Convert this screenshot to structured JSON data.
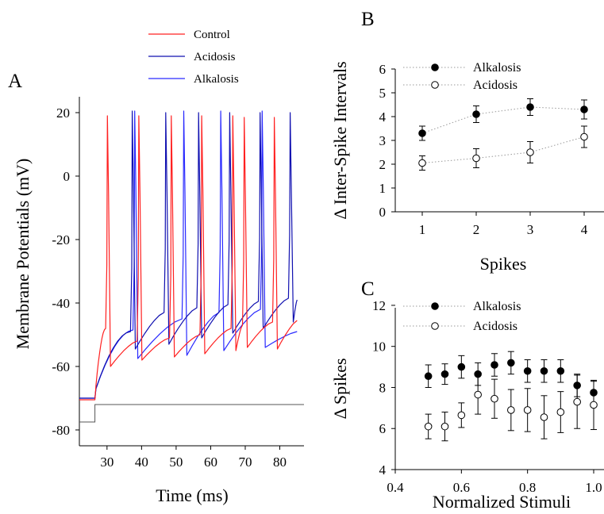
{
  "chart_data": [
    {
      "panel": "A",
      "type": "line",
      "xlabel": "Time (ms)",
      "ylabel": "Membrane Potentials (mV)",
      "xlim": [
        22,
        87
      ],
      "ylim": [
        -85,
        25
      ],
      "xticks": [
        30,
        40,
        50,
        60,
        70,
        80
      ],
      "yticks": [
        20,
        0,
        -20,
        -40,
        -60,
        -80
      ],
      "legend": {
        "placement": "top",
        "entries": [
          "Control",
          "Acidosis",
          "Alkalosis"
        ]
      },
      "stimulus": {
        "step_time": 26.5,
        "baseline": -77.5,
        "level": -72
      },
      "series": [
        {
          "name": "Control",
          "color": "#ff2020",
          "rest": -70.5,
          "start_time": 26.5,
          "first_rise_start": -66,
          "first_threshold": -48,
          "spike_times": [
            30.1,
            39.2,
            48.6,
            57.4,
            66.4,
            69.7,
            78.4
          ],
          "peaks": [
            19,
            19,
            19,
            19,
            19,
            18.5,
            18.5
          ],
          "troughs": [
            -60,
            -58,
            -57,
            -56,
            -55,
            -54,
            -54.5
          ],
          "thresholds": [
            -52,
            -51,
            -50,
            -48,
            -47,
            -46
          ],
          "end_value": -45.5
        },
        {
          "name": "Acidosis",
          "color": "#1010b0",
          "rest": -70,
          "start_time": 26.5,
          "first_rise_start": -67,
          "first_threshold": -49,
          "spike_times": [
            37.3,
            47.0,
            56.5,
            65.5,
            74.3,
            83.0
          ],
          "peaks": [
            20.5,
            20,
            20,
            20,
            20,
            20
          ],
          "troughs": [
            -54.5,
            -53,
            -51,
            -49.5,
            -48,
            -46
          ],
          "thresholds": [
            -43,
            -41.5,
            -40.5,
            -39.5,
            -38.5
          ],
          "end_value": -39
        },
        {
          "name": "Alkalosis",
          "color": "#2a2aff",
          "rest": -70,
          "start_time": 26.5,
          "first_rise_start": -67,
          "first_threshold": -48.5,
          "spike_times": [
            38.0,
            52.2,
            62.9,
            74.9
          ],
          "peaks": [
            20.5,
            20.5,
            20.5,
            20.5
          ],
          "troughs": [
            -57.5,
            -56.5,
            -55,
            -54
          ],
          "thresholds": [
            -45,
            -43,
            -42
          ],
          "end_value": -49
        }
      ]
    },
    {
      "panel": "B",
      "type": "scatter",
      "xlabel": "Spikes",
      "ylabel": "Δ Inter-Spike Intervals",
      "xlim": [
        0.5,
        4.5
      ],
      "ylim": [
        0,
        6
      ],
      "xticks": [
        1,
        2,
        3,
        4
      ],
      "yticks": [
        0,
        1,
        2,
        3,
        4,
        5,
        6
      ],
      "legend": {
        "placement": "top-left"
      },
      "series": [
        {
          "name": "Alkalosis",
          "marker": "filled",
          "x": [
            1,
            2,
            3,
            4
          ],
          "y": [
            3.3,
            4.1,
            4.4,
            4.3
          ],
          "err": [
            0.3,
            0.35,
            0.35,
            0.4
          ]
        },
        {
          "name": "Acidosis",
          "marker": "open",
          "x": [
            1,
            2,
            3,
            4
          ],
          "y": [
            2.05,
            2.25,
            2.5,
            3.15
          ],
          "err": [
            0.3,
            0.4,
            0.45,
            0.45
          ]
        }
      ]
    },
    {
      "panel": "C",
      "type": "scatter",
      "xlabel": "Normalized Stimuli",
      "ylabel": "Δ Spikes",
      "xlim": [
        0.4,
        1.0
      ],
      "ylim": [
        4,
        12.5
      ],
      "xticks": [
        0.4,
        0.6,
        0.8,
        1.0
      ],
      "xticklabels": [
        "0.4",
        "0.6",
        "0.8",
        "1.0"
      ],
      "yticks": [
        4,
        6,
        8,
        10,
        12
      ],
      "legend": {
        "placement": "top-left"
      },
      "series": [
        {
          "name": "Alkalosis",
          "marker": "filled",
          "x": [
            0.5,
            0.55,
            0.6,
            0.65,
            0.7,
            0.75,
            0.8,
            0.85,
            0.9,
            0.95,
            1.0
          ],
          "y": [
            8.55,
            8.65,
            9.0,
            8.65,
            9.1,
            9.2,
            8.8,
            8.8,
            8.8,
            8.1,
            7.75
          ],
          "err": [
            0.55,
            0.5,
            0.55,
            0.55,
            0.55,
            0.55,
            0.55,
            0.55,
            0.55,
            0.55,
            0.55
          ]
        },
        {
          "name": "Acidosis",
          "marker": "open",
          "x": [
            0.5,
            0.55,
            0.6,
            0.65,
            0.7,
            0.75,
            0.8,
            0.85,
            0.9,
            0.95,
            1.0
          ],
          "y": [
            6.1,
            6.1,
            6.65,
            7.65,
            7.45,
            6.9,
            6.9,
            6.55,
            6.8,
            7.3,
            7.15
          ],
          "err": [
            0.6,
            0.7,
            0.6,
            0.95,
            0.95,
            1.0,
            1.05,
            1.05,
            1.0,
            1.3,
            1.2
          ]
        }
      ]
    }
  ]
}
